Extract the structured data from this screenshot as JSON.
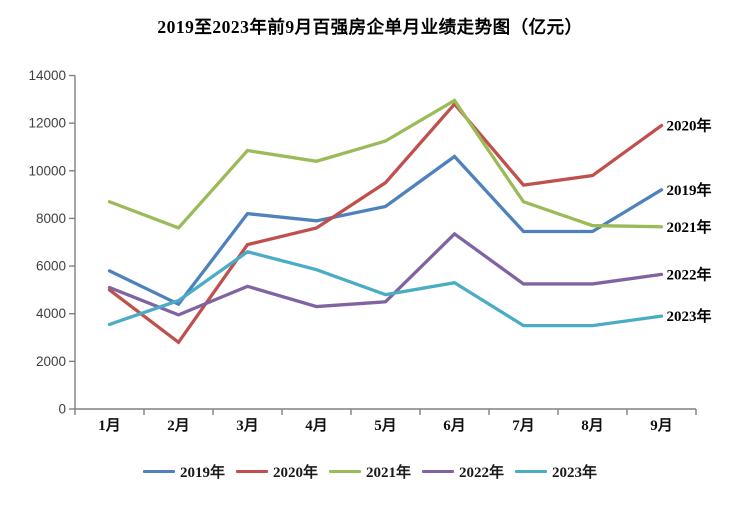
{
  "title": "2019至2023年前9月百强房企单月业绩走势图（亿元）",
  "axis_color": "#808080",
  "tick_label_color": "#404040",
  "month_label_color": "#111111",
  "end_label_color": "#000000",
  "chart_data": {
    "type": "line",
    "title": "2019至2023年前9月百强房企单月业绩走势图（亿元）",
    "unit": "亿元",
    "categories": [
      "1月",
      "2月",
      "3月",
      "4月",
      "5月",
      "6月",
      "7月",
      "8月",
      "9月"
    ],
    "series": [
      {
        "name": "2019年",
        "color": "#4F81BD",
        "values": [
          5800,
          4400,
          8200,
          7900,
          8500,
          10600,
          7450,
          7450,
          9200
        ]
      },
      {
        "name": "2020年",
        "color": "#C0504D",
        "values": [
          5000,
          2800,
          6900,
          7600,
          9500,
          12800,
          9400,
          9800,
          11900
        ]
      },
      {
        "name": "2021年",
        "color": "#9BBB59",
        "values": [
          8700,
          7600,
          10850,
          10400,
          11250,
          12950,
          8700,
          7700,
          7650
        ]
      },
      {
        "name": "2022年",
        "color": "#8064A2",
        "values": [
          5100,
          3950,
          5150,
          4300,
          4500,
          7350,
          5250,
          5250,
          5650
        ]
      },
      {
        "name": "2023年",
        "color": "#4BACC6",
        "values": [
          3550,
          4550,
          6600,
          5850,
          4800,
          5300,
          3500,
          3500,
          3900
        ]
      }
    ],
    "ylim": [
      0,
      14000
    ],
    "ytick_step": 2000,
    "yticks": [
      0,
      2000,
      4000,
      6000,
      8000,
      10000,
      12000,
      14000
    ],
    "grid": false,
    "legend_position": "bottom",
    "legend_labels": [
      "2019年",
      "2020年",
      "2021年",
      "2022年",
      "2023年"
    ],
    "end_labels_top_to_bottom": [
      "2020年",
      "2019年",
      "2021年",
      "2022年",
      "2023年"
    ]
  }
}
